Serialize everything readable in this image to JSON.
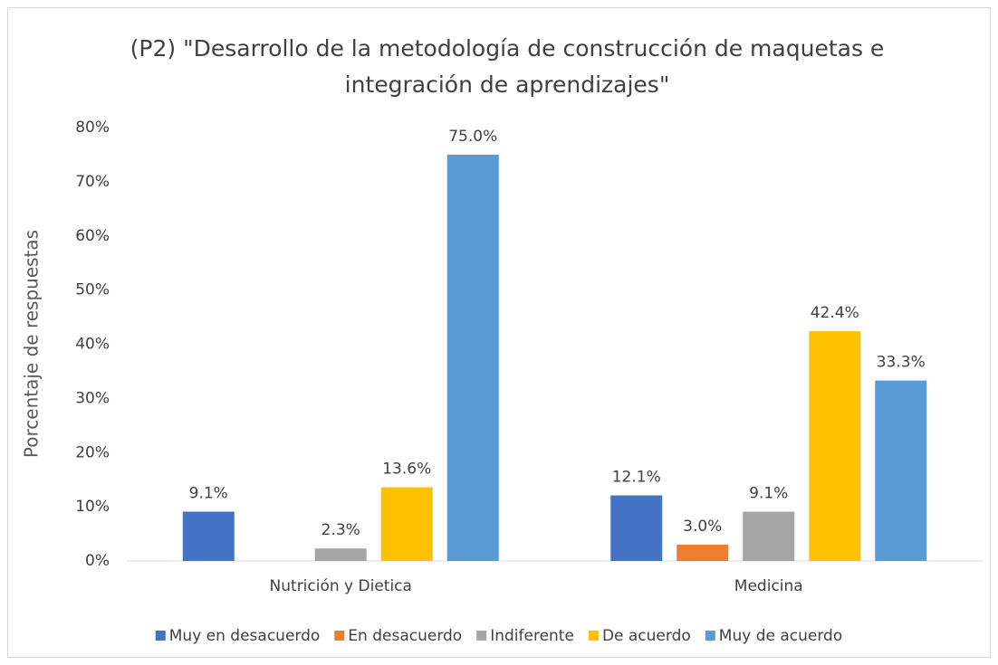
{
  "chart_data": {
    "type": "bar",
    "title": "(P2) \"Desarrollo de la metodología de construcción de maquetas e integración de aprendizajes\"",
    "y_axis_label": "Porcentaje de respuestas",
    "categories": [
      "Nutrición y Dietica",
      "Medicina"
    ],
    "series": [
      {
        "name": "Muy en desacuerdo",
        "color": "#4472c4",
        "values": [
          9.1,
          12.1
        ],
        "value_labels": [
          "9.1%",
          "12.1%"
        ]
      },
      {
        "name": "En desacuerdo",
        "color": "#ed7d31",
        "values": [
          0,
          3.0
        ],
        "value_labels": [
          null,
          "3.0%"
        ]
      },
      {
        "name": "Indiferente",
        "color": "#a5a5a5",
        "values": [
          2.3,
          9.1
        ],
        "value_labels": [
          "2.3%",
          "9.1%"
        ]
      },
      {
        "name": "De acuerdo",
        "color": "#ffc000",
        "values": [
          13.6,
          42.4
        ],
        "value_labels": [
          "13.6%",
          "42.4%"
        ]
      },
      {
        "name": "Muy de acuerdo",
        "color": "#5b9bd5",
        "values": [
          75.0,
          33.3
        ],
        "value_labels": [
          "75.0%",
          "33.3%"
        ]
      }
    ],
    "ylim": [
      0,
      80
    ],
    "yticks": [
      {
        "value": 0,
        "label": "0%"
      },
      {
        "value": 10,
        "label": "10%"
      },
      {
        "value": 20,
        "label": "20%"
      },
      {
        "value": 30,
        "label": "30%"
      },
      {
        "value": 40,
        "label": "40%"
      },
      {
        "value": 50,
        "label": "50%"
      },
      {
        "value": 60,
        "label": "60%"
      },
      {
        "value": 70,
        "label": "70%"
      },
      {
        "value": 80,
        "label": "80%"
      }
    ],
    "grid": false,
    "legend": "bottom"
  }
}
